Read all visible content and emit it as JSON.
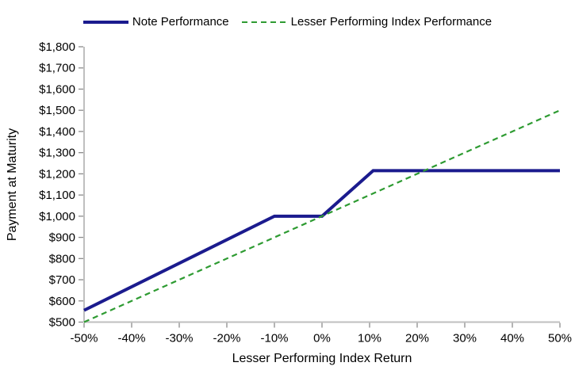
{
  "chart_data": {
    "type": "line",
    "title": "",
    "xlabel": "Lesser Performing Index Return",
    "ylabel": "Payment at Maturity",
    "xlim": [
      -50,
      50
    ],
    "ylim": [
      500,
      1800
    ],
    "grid": false,
    "legend_position": "top-center",
    "axis_color": "#BFBFBF",
    "tick_color": "#8C8C8C",
    "text_color": "#000000",
    "background_color": "#FFFFFF",
    "x_tick_values": [
      -50,
      -40,
      -30,
      -20,
      -10,
      0,
      10,
      20,
      30,
      40,
      50
    ],
    "x_tick_labels": [
      "-50%",
      "-40%",
      "-30%",
      "-20%",
      "-10%",
      "0%",
      "10%",
      "20%",
      "30%",
      "40%",
      "50%"
    ],
    "y_tick_values": [
      500,
      600,
      700,
      800,
      900,
      1000,
      1100,
      1200,
      1300,
      1400,
      1500,
      1600,
      1700,
      1800
    ],
    "y_tick_labels": [
      "$500",
      "$600",
      "$700",
      "$800",
      "$900",
      "$1,000",
      "$1,100",
      "$1,200",
      "$1,300",
      "$1,400",
      "$1,500",
      "$1,600",
      "$1,700",
      "$1,800"
    ],
    "series": [
      {
        "name": "Note Performance",
        "color": "#1B1B8E",
        "style": "solid",
        "width": 4,
        "points": [
          [
            -50,
            555.6
          ],
          [
            -10,
            1000
          ],
          [
            0,
            1000
          ],
          [
            10.75,
            1215
          ],
          [
            50,
            1215
          ]
        ]
      },
      {
        "name": "Lesser Performing Index Performance",
        "color": "#2E9B32",
        "style": "dashed",
        "width": 2.2,
        "points": [
          [
            -50,
            500
          ],
          [
            50,
            1500
          ]
        ]
      }
    ]
  }
}
